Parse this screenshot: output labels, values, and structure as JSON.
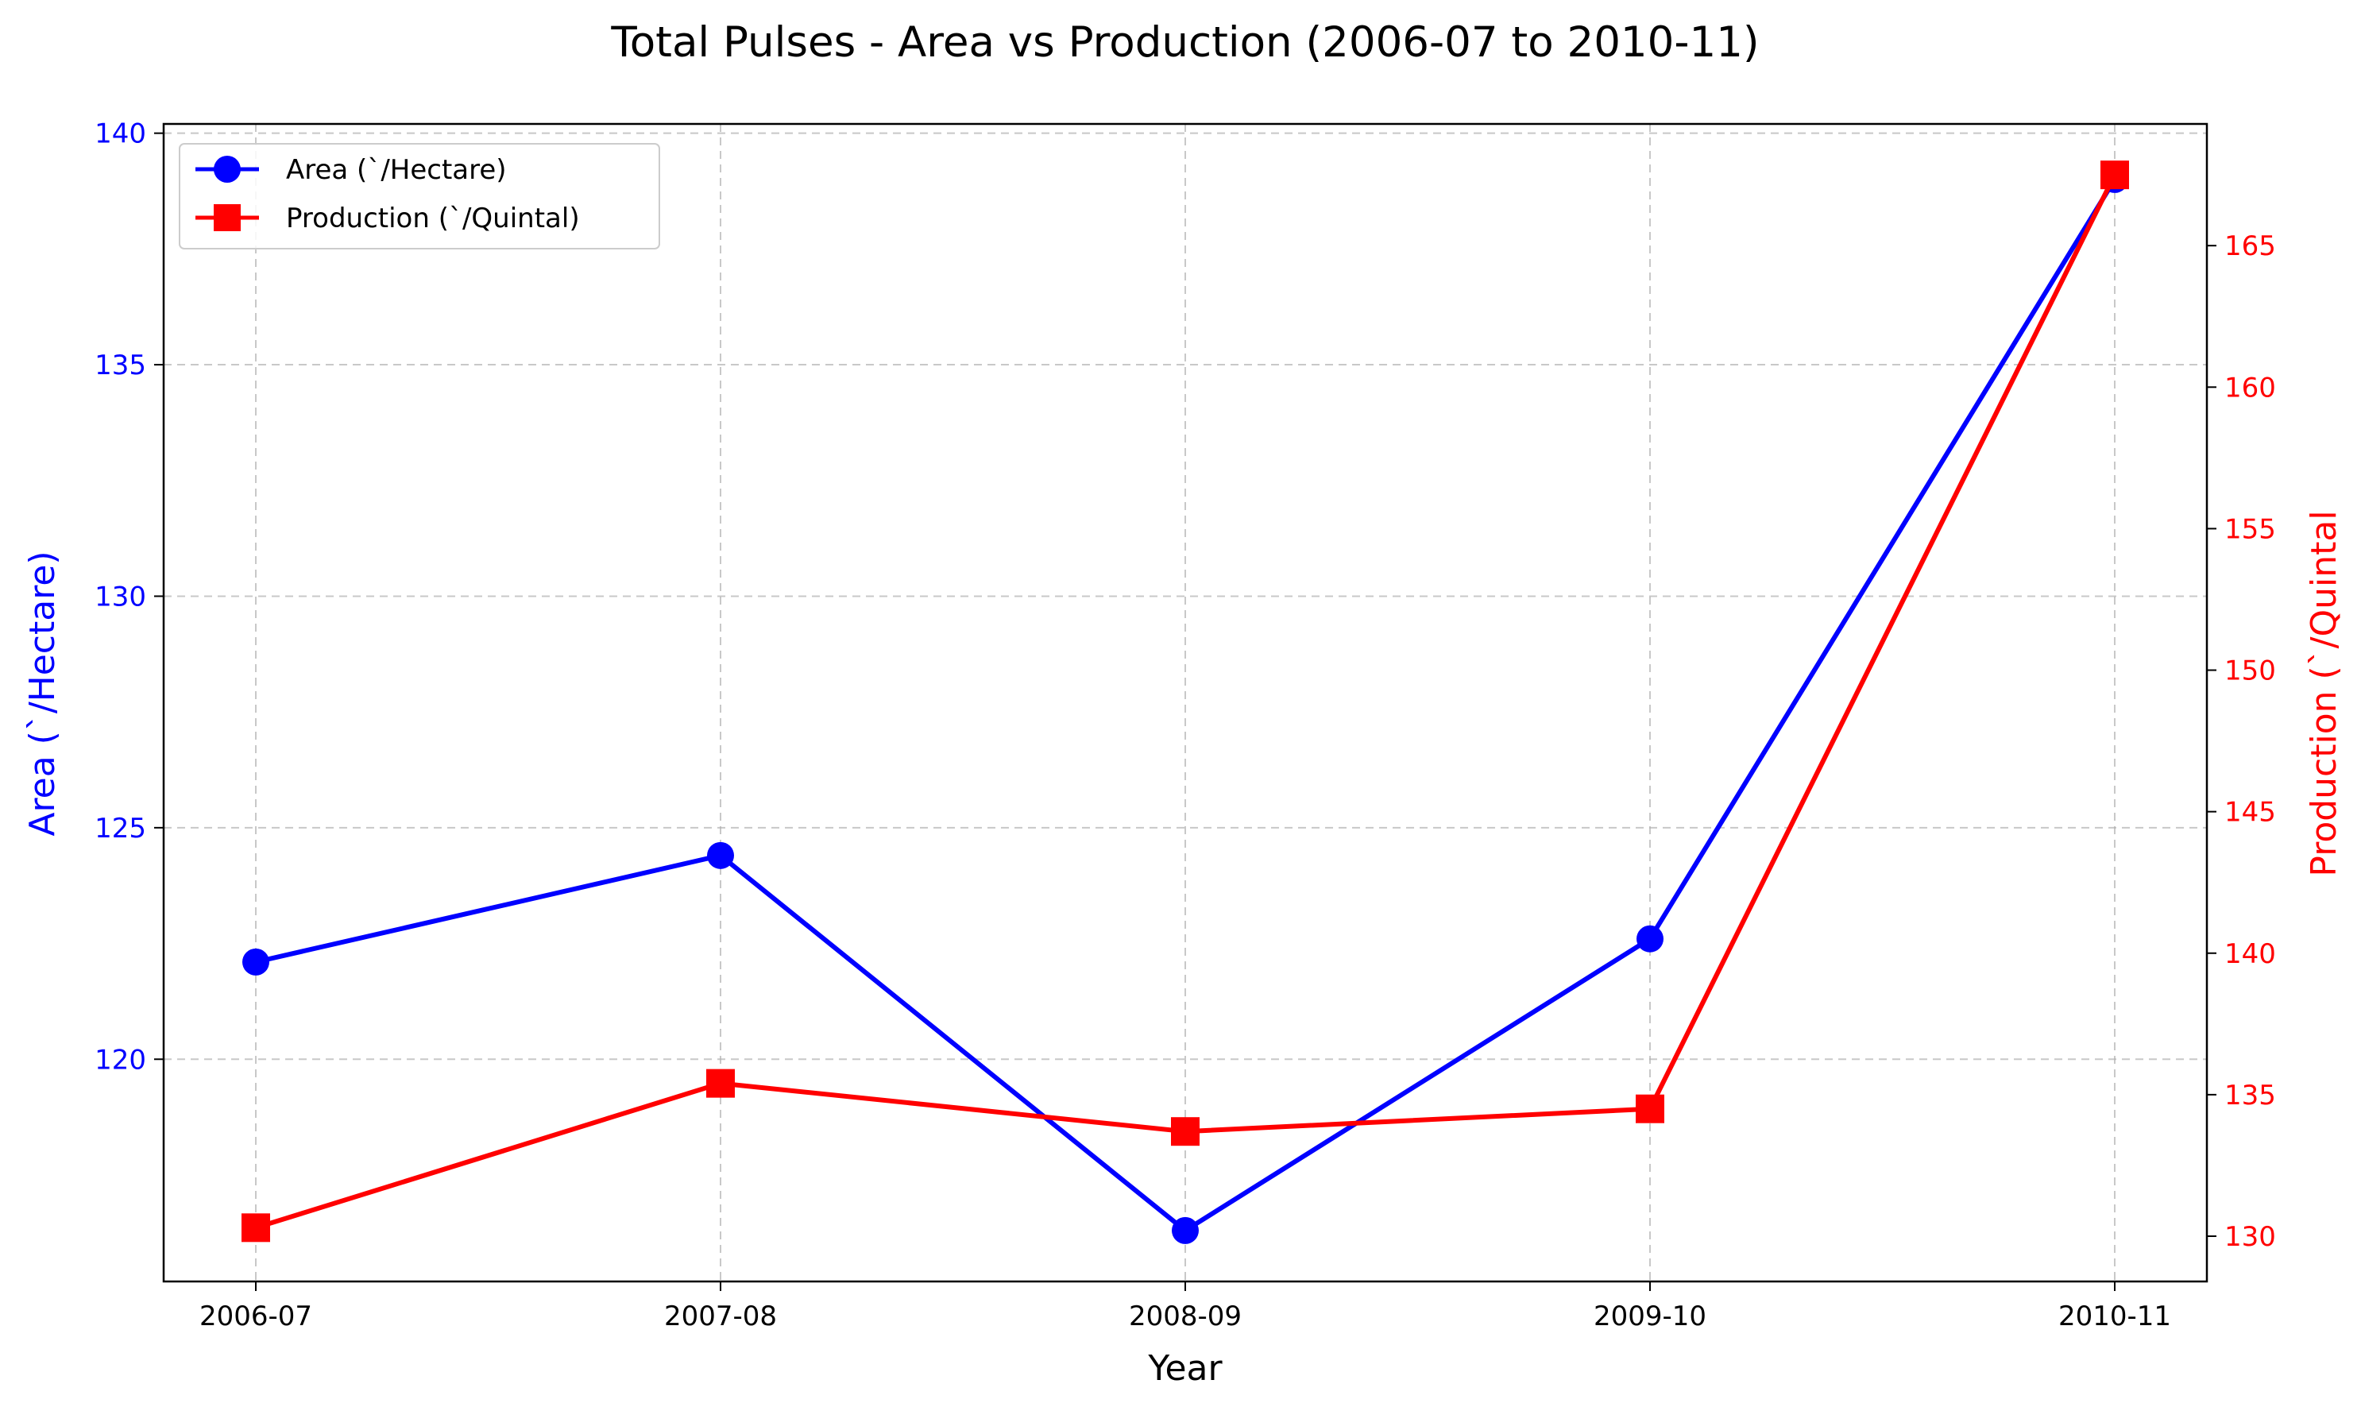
{
  "chart_data": {
    "type": "line",
    "title": "Total Pulses - Area vs Production (2006-07 to 2010-11)",
    "xlabel": "Year",
    "categories": [
      "2006-07",
      "2007-08",
      "2008-09",
      "2009-10",
      "2010-11"
    ],
    "series": [
      {
        "name": "Area (`/Hectare)",
        "axis": "left",
        "color": "#0000ff",
        "marker": "circle",
        "values": [
          122.1,
          124.4,
          116.3,
          122.6,
          139.0
        ]
      },
      {
        "name": "Production (`/Quintal)",
        "axis": "right",
        "color": "#ff0000",
        "marker": "square",
        "values": [
          130.3,
          135.4,
          133.7,
          134.5,
          167.5
        ]
      }
    ],
    "y_left": {
      "label": "Area (`/Hectare)",
      "color": "#0000ff",
      "ylim": [
        115.2,
        140.2
      ],
      "ticks": [
        120,
        125,
        130,
        135,
        140
      ]
    },
    "y_right": {
      "label": "Production (`/Quintal",
      "color": "#ff0000",
      "ylim": [
        128.4,
        169.3
      ],
      "ticks": [
        130,
        135,
        140,
        145,
        150,
        155,
        160,
        165
      ]
    },
    "grid": true,
    "grid_style": "dashed",
    "legend_position": "upper-left"
  }
}
